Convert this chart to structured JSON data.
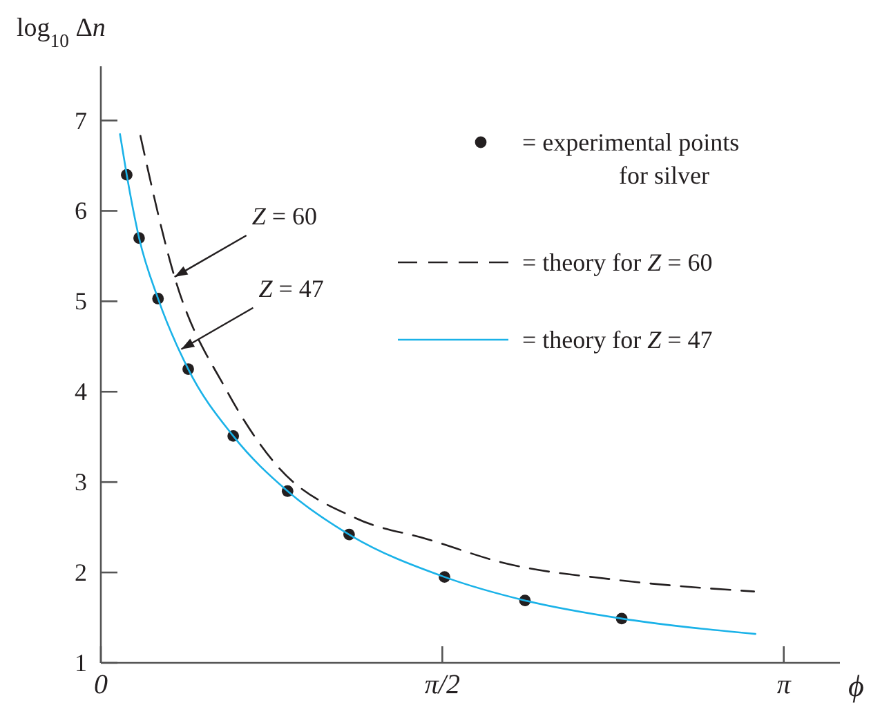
{
  "chart_data": {
    "type": "line",
    "ylabel": "log$_{10}$ Δn",
    "xlabel": "ϕ",
    "xlim": [
      0,
      3.4
    ],
    "ylim": [
      1,
      7.6
    ],
    "xticks": [
      0,
      {
        "value": 1.5708,
        "label": "π/2"
      },
      {
        "value": 3.1416,
        "label": "π"
      }
    ],
    "yticks": [
      1,
      2,
      3,
      4,
      5,
      6,
      7
    ],
    "grid": false,
    "legend": "top right",
    "series": [
      {
        "name": "= experimental points for silver",
        "type": "scatter",
        "marker": "circle",
        "color": "#231f20",
        "x": [
          0.119,
          0.176,
          0.263,
          0.402,
          0.609,
          0.859,
          1.142,
          1.581,
          1.951,
          2.396
        ],
        "values": [
          6.4,
          5.7,
          5.03,
          4.25,
          3.51,
          2.9,
          2.42,
          1.95,
          1.69,
          1.49
        ]
      },
      {
        "name": "= theory for Z = 60",
        "line_style": "dashed",
        "color": "#231f20",
        "x": [
          0.182,
          0.339,
          0.577,
          0.8,
          1.173,
          1.5,
          1.863,
          2.365,
          3.005
        ],
        "values": [
          6.83,
          5.27,
          4.02,
          3.21,
          2.6,
          2.37,
          2.1,
          1.92,
          1.79
        ]
      },
      {
        "name": "= theory for Z = 47",
        "line_style": "solid",
        "color": "#1ab2e8",
        "x": [
          0.088,
          0.119,
          0.176,
          0.263,
          0.402,
          0.609,
          0.859,
          1.142,
          1.581,
          1.951,
          2.396,
          2.68,
          3.011
        ],
        "values": [
          6.85,
          6.4,
          5.7,
          5.03,
          4.25,
          3.51,
          2.9,
          2.42,
          1.95,
          1.69,
          1.49,
          1.4,
          1.32
        ]
      }
    ],
    "annotations": [
      {
        "text": "Z = 60",
        "x": 0.339,
        "y": 5.27
      },
      {
        "text": "Z = 47",
        "x": 0.37,
        "y": 4.47
      }
    ]
  }
}
